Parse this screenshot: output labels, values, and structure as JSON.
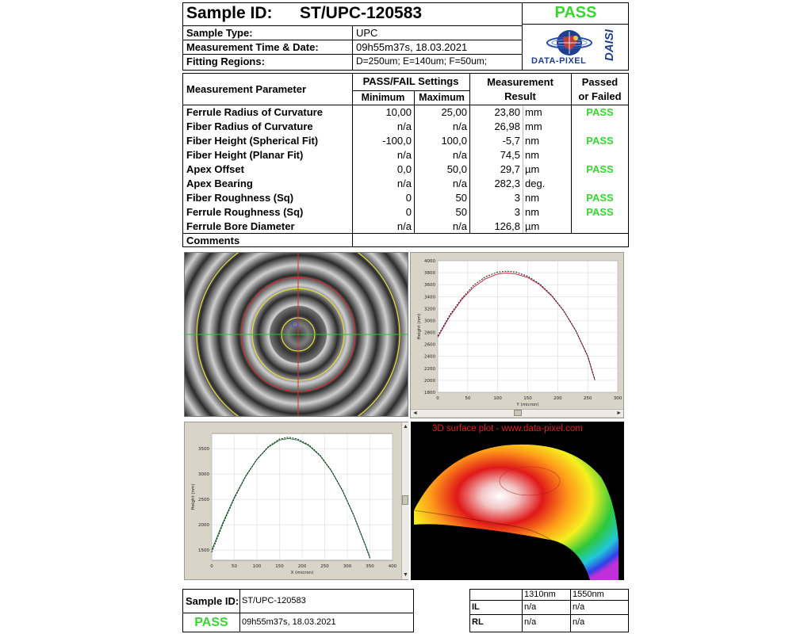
{
  "header": {
    "sample_id_label": "Sample ID:",
    "sample_id": "ST/UPC-120583",
    "status": "PASS",
    "rows": [
      {
        "label": "Sample Type:",
        "value": "UPC"
      },
      {
        "label": "Measurement Time & Date:",
        "value": "09h55m37s,  18.03.2021"
      },
      {
        "label": "Fitting Regions:",
        "value": "D=250um;  E=140um;  F=50um;"
      }
    ],
    "logo_text": "DATA-PIXEL",
    "logo_side_text": "DAISI"
  },
  "table": {
    "col_param": "Measurement Parameter",
    "col_settings": "PASS/FAIL Settings",
    "col_min": "Minimum",
    "col_max": "Maximum",
    "col_result_1": "Measurement",
    "col_result_2": "Result",
    "col_pf_1": "Passed",
    "col_pf_2": "or Failed",
    "rows": [
      {
        "param": "Ferrule Radius of Curvature",
        "min": "10,00",
        "max": "25,00",
        "result": "23,80",
        "unit": "mm",
        "status": "PASS"
      },
      {
        "param": "Fiber Radius of Curvature",
        "min": "n/a",
        "max": "n/a",
        "result": "26,98",
        "unit": "mm",
        "status": ""
      },
      {
        "param": "Fiber Height (Spherical Fit)",
        "min": "-100,0",
        "max": "100,0",
        "result": "-5,7",
        "unit": "nm",
        "status": "PASS"
      },
      {
        "param": "Fiber Height (Planar Fit)",
        "min": "n/a",
        "max": "n/a",
        "result": "74,5",
        "unit": "nm",
        "status": ""
      },
      {
        "param": "Apex Offset",
        "min": "0,0",
        "max": "50,0",
        "result": "29,7",
        "unit": "µm",
        "status": "PASS"
      },
      {
        "param": "Apex Bearing",
        "min": "n/a",
        "max": "n/a",
        "result": "282,3",
        "unit": "deg.",
        "status": ""
      },
      {
        "param": "Fiber Roughness (Sq)",
        "min": "0",
        "max": "50",
        "result": "3",
        "unit": "nm",
        "status": "PASS"
      },
      {
        "param": "Ferrule Roughness (Sq)",
        "min": "0",
        "max": "50",
        "result": "3",
        "unit": "nm",
        "status": "PASS"
      },
      {
        "param": "Ferrule Bore Diameter",
        "min": "n/a",
        "max": "n/a",
        "result": "126,8",
        "unit": "µm",
        "status": ""
      }
    ],
    "comments_label": "Comments"
  },
  "plot3d_title": "3D surface plot - www.data-pixel.com",
  "chart_data": [
    {
      "type": "line",
      "xlabel": "Y (micron)",
      "ylabel": "Height (nm)",
      "xlim": [
        0,
        300
      ],
      "ylim": [
        1800,
        4000
      ],
      "x_ticks": [
        0,
        50,
        100,
        150,
        200,
        250,
        300
      ],
      "y_ticks": [
        1800,
        2000,
        2200,
        2400,
        2600,
        2800,
        3000,
        3200,
        3400,
        3600,
        3800,
        4000
      ],
      "series": [
        {
          "color": "#c0304a",
          "x": [
            0,
            20,
            40,
            60,
            80,
            100,
            115,
            130,
            150,
            170,
            190,
            210,
            230,
            250,
            262
          ],
          "y": [
            2720,
            3070,
            3350,
            3560,
            3700,
            3780,
            3795,
            3780,
            3720,
            3600,
            3410,
            3160,
            2830,
            2400,
            2000
          ]
        },
        {
          "color": "#1a1a1a",
          "x": [
            0,
            20,
            40,
            60,
            80,
            100,
            115,
            130,
            150,
            170,
            190,
            210,
            230,
            250,
            262
          ],
          "y": [
            2740,
            3090,
            3370,
            3590,
            3735,
            3810,
            3825,
            3810,
            3740,
            3615,
            3420,
            3165,
            2835,
            2405,
            2010
          ]
        }
      ]
    },
    {
      "type": "line",
      "xlabel": "X (micron)",
      "ylabel": "Height (nm)",
      "xlim": [
        0,
        400
      ],
      "ylim": [
        1300,
        3800
      ],
      "x_ticks": [
        0,
        50,
        100,
        150,
        200,
        250,
        300,
        350,
        400
      ],
      "y_ticks": [
        1500,
        2000,
        2500,
        3000,
        3500
      ],
      "series": [
        {
          "color": "#1f7a3a",
          "x": [
            0,
            25,
            50,
            75,
            100,
            125,
            150,
            170,
            190,
            215,
            240,
            265,
            290,
            315,
            340,
            350
          ],
          "y": [
            1500,
            2050,
            2540,
            2960,
            3290,
            3530,
            3670,
            3700,
            3670,
            3560,
            3360,
            3060,
            2660,
            2170,
            1600,
            1360
          ]
        },
        {
          "color": "#1a1a1a",
          "x": [
            0,
            25,
            50,
            75,
            100,
            125,
            150,
            170,
            190,
            215,
            240,
            265,
            290,
            315,
            340,
            350
          ],
          "y": [
            1460,
            2020,
            2520,
            2950,
            3290,
            3540,
            3690,
            3725,
            3690,
            3575,
            3370,
            3065,
            2665,
            2170,
            1590,
            1340
          ]
        }
      ]
    }
  ],
  "footer": {
    "sample_id_label": "Sample ID:",
    "sample_id": "ST/UPC-120583",
    "status": "PASS",
    "datetime": "09h55m37s,  18.03.2021",
    "loss_headers": [
      "1310nm",
      "1550nm"
    ],
    "loss_rows": [
      {
        "label": "IL",
        "v1": "n/a",
        "v2": "n/a"
      },
      {
        "label": "RL",
        "v1": "n/a",
        "v2": "n/a"
      }
    ]
  }
}
